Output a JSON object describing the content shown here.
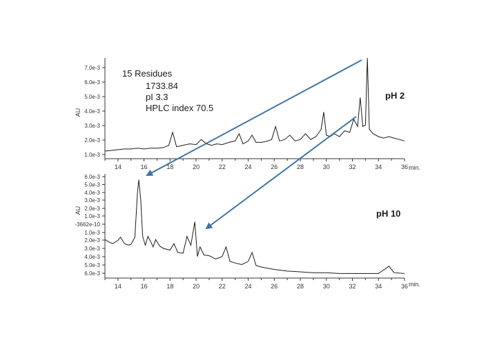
{
  "colors": {
    "trace": "#1a1a1a",
    "axis": "#333333",
    "arrow": "#3f74a3",
    "background": "#ffffff"
  },
  "annotation": {
    "title": "15 Residues",
    "mass": "1733.84",
    "pi": "pI 3.3",
    "hplc": "HPLC index 70.5"
  },
  "chart_data": [
    {
      "type": "line",
      "title": "pH 2",
      "xlabel": "min.",
      "ylabel": "AU",
      "xlim": [
        13,
        36
      ],
      "x_ticks": [
        "14",
        "16",
        "18",
        "20",
        "22",
        "24",
        "26",
        "28",
        "30",
        "32",
        "34",
        "36"
      ],
      "y_ticks": [
        "1.0e-3",
        "2.0e-3",
        "3.0e-3",
        "4.0e-3",
        "5.0e-3",
        "6.0e-3",
        "7.0e-3"
      ],
      "series": [
        {
          "x": [
            13.0,
            13.5,
            14.0,
            14.5,
            15.0,
            15.5,
            16.0,
            16.5,
            17.0,
            17.5,
            17.9,
            18.2,
            18.5,
            19.0,
            19.5,
            20.0,
            20.4,
            20.8,
            21.2,
            21.6,
            22.0,
            22.5,
            23.0,
            23.3,
            23.6,
            24.0,
            24.3,
            24.6,
            25.0,
            25.5,
            25.8,
            26.1,
            26.4,
            26.8,
            27.2,
            27.6,
            28.0,
            28.4,
            28.8,
            29.2,
            29.6,
            29.8,
            30.0,
            30.3,
            30.6,
            31.0,
            31.4,
            31.8,
            32.1,
            32.4,
            32.6,
            32.8,
            33.0,
            33.15,
            33.3,
            33.6,
            34.0,
            34.4,
            34.8,
            35.2,
            35.6,
            36.0
          ],
          "y": [
            0.8,
            0.85,
            0.9,
            0.95,
            0.95,
            1.0,
            0.95,
            1.0,
            1.0,
            1.05,
            1.2,
            2.1,
            1.1,
            1.2,
            1.3,
            1.25,
            1.6,
            1.3,
            1.2,
            1.3,
            1.25,
            1.4,
            1.5,
            2.0,
            1.3,
            1.5,
            1.9,
            1.4,
            1.4,
            1.5,
            1.6,
            2.5,
            1.5,
            1.6,
            1.9,
            1.5,
            1.6,
            2.0,
            1.6,
            1.8,
            2.3,
            3.5,
            1.9,
            1.8,
            2.0,
            1.8,
            2.2,
            2.1,
            3.0,
            2.5,
            4.5,
            2.5,
            2.6,
            8.0,
            2.3,
            2.0,
            1.8,
            1.7,
            1.8,
            1.7,
            1.6,
            1.5
          ]
        }
      ]
    },
    {
      "type": "line",
      "title": "pH 10",
      "xlabel": "min.",
      "ylabel": "AU",
      "xlim": [
        13,
        36
      ],
      "x_ticks": [
        "14",
        "16",
        "18",
        "20",
        "22",
        "24",
        "26",
        "28",
        "30",
        "32",
        "34",
        "36"
      ],
      "y_ticks": [
        "6.0e-3",
        "5.0e-3",
        "4.0e-3",
        "3.0e-3",
        "2.0e-3",
        "1.0e-3",
        "-3662e-10",
        "1.0e-3",
        "2.0e-3",
        "3.0e-3",
        "4.0e-3",
        "5.0e-3",
        "6.0e-3"
      ],
      "series": [
        {
          "x": [
            13.0,
            13.3,
            13.6,
            14.0,
            14.2,
            14.5,
            14.8,
            15.0,
            15.3,
            15.5,
            15.6,
            15.75,
            15.9,
            16.1,
            16.3,
            16.5,
            16.7,
            16.9,
            17.2,
            17.5,
            18.0,
            18.3,
            18.6,
            19.0,
            19.3,
            19.6,
            19.9,
            20.1,
            20.3,
            20.6,
            21.0,
            21.5,
            22.0,
            22.3,
            22.6,
            23.0,
            23.5,
            24.0,
            24.3,
            24.6,
            25.0,
            26.0,
            27.0,
            28.0,
            29.0,
            30.0,
            31.0,
            32.0,
            33.0,
            34.0,
            34.8,
            35.2,
            36.0
          ],
          "y": [
            1.9,
            2.2,
            2.4,
            2.0,
            1.6,
            2.4,
            2.6,
            2.5,
            1.6,
            -4.0,
            -5.5,
            -3.0,
            1.5,
            2.6,
            1.5,
            2.1,
            2.8,
            1.9,
            2.7,
            3.0,
            3.2,
            2.4,
            3.5,
            3.6,
            1.5,
            2.6,
            -0.3,
            4.0,
            2.8,
            3.8,
            3.9,
            4.3,
            4.0,
            2.8,
            4.6,
            4.8,
            5.0,
            4.6,
            3.5,
            5.1,
            5.3,
            5.6,
            5.8,
            5.9,
            6.0,
            6.0,
            6.1,
            6.1,
            6.1,
            6.1,
            5.2,
            6.0,
            6.1
          ]
        }
      ]
    }
  ]
}
